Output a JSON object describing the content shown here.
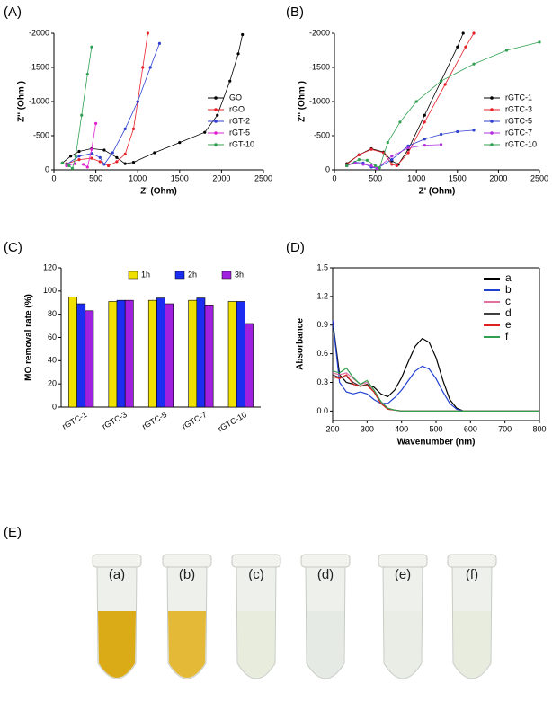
{
  "chart_data": [
    {
      "type": "line",
      "label": "(A)",
      "markers": true,
      "legend": "lower right",
      "x_label": "Z' (Ohm)",
      "y_label": "Z'' (Ohm )",
      "xlim": [
        0,
        2500
      ],
      "xticks": [
        0,
        500,
        1000,
        1500,
        2000,
        2500
      ],
      "ylim": [
        0,
        -2000
      ],
      "yticks": [
        -2000,
        -1500,
        -1000,
        -500,
        0
      ],
      "series": [
        {
          "name": "GO",
          "color": "#000000",
          "x": [
            100,
            200,
            300,
            450,
            600,
            750,
            850,
            950,
            1200,
            1500,
            1800,
            1950,
            2100,
            2200,
            2250
          ],
          "values": [
            -100,
            -200,
            -270,
            -310,
            -290,
            -180,
            -90,
            -110,
            -250,
            -400,
            -550,
            -800,
            -1300,
            -1700,
            -1980
          ]
        },
        {
          "name": "rGO",
          "color": "#e8202a",
          "x": [
            150,
            300,
            450,
            550,
            650,
            750,
            850,
            950,
            1000,
            1060,
            1120
          ],
          "values": [
            -90,
            -150,
            -170,
            -120,
            -60,
            -120,
            -230,
            -600,
            -1000,
            -1500,
            -2000
          ]
        },
        {
          "name": "rGT-2",
          "color": "#3040d0",
          "x": [
            150,
            300,
            450,
            550,
            600,
            700,
            850,
            1000,
            1150,
            1260
          ],
          "values": [
            -80,
            -200,
            -240,
            -180,
            -80,
            -250,
            -600,
            -1000,
            -1500,
            -1850
          ]
        },
        {
          "name": "rGT-5",
          "color": "#e020d0",
          "x": [
            150,
            250,
            350,
            400,
            450,
            500
          ],
          "values": [
            -60,
            -90,
            -80,
            -40,
            -300,
            -680
          ]
        },
        {
          "name": "rGT-10",
          "color": "#30a050",
          "x": [
            100,
            180,
            220,
            260,
            330,
            400,
            450
          ],
          "values": [
            -100,
            -60,
            -20,
            -200,
            -800,
            -1400,
            -1800
          ]
        }
      ]
    },
    {
      "type": "line",
      "label": "(B)",
      "markers": true,
      "legend": "lower right",
      "x_label": "Z' (Ohm)",
      "y_label": "Z'' (Ohm )",
      "xlim": [
        0,
        2500
      ],
      "xticks": [
        0,
        500,
        1000,
        1500,
        2000,
        2500
      ],
      "ylim": [
        0,
        -2000
      ],
      "yticks": [
        -2000,
        -1500,
        -1000,
        -500,
        0
      ],
      "series": [
        {
          "name": "rGTC-1",
          "color": "#000000",
          "x": [
            150,
            300,
            450,
            600,
            700,
            780,
            900,
            1100,
            1300,
            1500,
            1570
          ],
          "values": [
            -90,
            -220,
            -310,
            -260,
            -130,
            -80,
            -300,
            -800,
            -1300,
            -1800,
            -2000
          ]
        },
        {
          "name": "rGTC-3",
          "color": "#e8202a",
          "x": [
            150,
            300,
            450,
            600,
            700,
            760,
            900,
            1100,
            1350,
            1600,
            1700
          ],
          "values": [
            -80,
            -220,
            -300,
            -250,
            -80,
            -60,
            -250,
            -700,
            -1250,
            -1800,
            -2000
          ]
        },
        {
          "name": "rGTC-5",
          "color": "#3040d0",
          "x": [
            150,
            250,
            350,
            450,
            520,
            700,
            900,
            1100,
            1300,
            1500,
            1700
          ],
          "values": [
            -60,
            -110,
            -100,
            -40,
            -20,
            -150,
            -350,
            -450,
            -520,
            -560,
            -580
          ]
        },
        {
          "name": "rGTC-7",
          "color": "#b030e0",
          "x": [
            150,
            250,
            350,
            450,
            520,
            700,
            900,
            1100,
            1300
          ],
          "values": [
            -60,
            -100,
            -80,
            -60,
            -20,
            -200,
            -320,
            -360,
            -370
          ]
        },
        {
          "name": "rGTC-10",
          "color": "#30a050",
          "x": [
            150,
            300,
            400,
            500,
            550,
            650,
            800,
            1000,
            1300,
            1700,
            2100,
            2500
          ],
          "values": [
            -60,
            -150,
            -140,
            -60,
            -30,
            -400,
            -700,
            -1000,
            -1300,
            -1550,
            -1750,
            -1870
          ]
        }
      ]
    },
    {
      "type": "bar",
      "label": "(C)",
      "legend": "upper center",
      "y_label": "MO removal rate (%)",
      "categories": [
        "rGTC-1",
        "rGTC-3",
        "rGTC-5",
        "rGTC-7",
        "rGTC-10"
      ],
      "ylim": [
        0,
        120
      ],
      "yticks": [
        0,
        20,
        40,
        60,
        80,
        100,
        120
      ],
      "series": [
        {
          "name": "1h",
          "color": "#f0e000",
          "values": [
            95,
            91,
            92,
            92,
            91
          ]
        },
        {
          "name": "2h",
          "color": "#1c2cf0",
          "values": [
            89,
            92,
            94,
            94,
            91
          ]
        },
        {
          "name": "3h",
          "color": "#a020e0",
          "values": [
            83,
            92,
            89,
            88,
            72
          ]
        }
      ]
    },
    {
      "type": "line",
      "label": "(D)",
      "markers": false,
      "legend": "upper right",
      "x_label": "Wavenumber (nm)",
      "y_label": "Absorbance",
      "xlim": [
        200,
        800
      ],
      "xticks": [
        200,
        300,
        400,
        500,
        600,
        700,
        800
      ],
      "ylim": [
        -0.1,
        1.5
      ],
      "yticks": [
        {
          "value": 0,
          "label": "0.0"
        },
        0.3,
        0.6,
        0.9,
        1.2,
        1.5
      ],
      "x": [
        200,
        220,
        240,
        260,
        280,
        300,
        320,
        340,
        360,
        380,
        400,
        420,
        440,
        460,
        480,
        500,
        520,
        540,
        560,
        580,
        600,
        700,
        800
      ],
      "series": [
        {
          "name": "a",
          "color": "#000000",
          "values": [
            0.95,
            0.38,
            0.3,
            0.28,
            0.26,
            0.28,
            0.25,
            0.18,
            0.15,
            0.22,
            0.35,
            0.52,
            0.68,
            0.76,
            0.72,
            0.56,
            0.32,
            0.12,
            0.03,
            0,
            0,
            0,
            0
          ]
        },
        {
          "name": "b",
          "color": "#2040d0",
          "values": [
            0.95,
            0.3,
            0.2,
            0.18,
            0.2,
            0.18,
            0.12,
            0.08,
            0.08,
            0.14,
            0.22,
            0.32,
            0.42,
            0.47,
            0.44,
            0.34,
            0.2,
            0.08,
            0.02,
            0,
            0,
            0,
            0
          ]
        },
        {
          "name": "c",
          "color": "#e070a0",
          "values": [
            0.4,
            0.38,
            0.4,
            0.34,
            0.28,
            0.3,
            0.22,
            0.1,
            0.03,
            0.01,
            0,
            0,
            0,
            0,
            0,
            0,
            0,
            0,
            0,
            0,
            0,
            0,
            0
          ]
        },
        {
          "name": "d",
          "color": "#404040",
          "values": [
            0.38,
            0.35,
            0.36,
            0.3,
            0.26,
            0.28,
            0.2,
            0.08,
            0.02,
            0.01,
            0,
            0,
            0,
            0,
            0,
            0,
            0,
            0,
            0,
            0,
            0,
            0,
            0
          ]
        },
        {
          "name": "e",
          "color": "#e02020",
          "values": [
            0.36,
            0.34,
            0.38,
            0.28,
            0.26,
            0.27,
            0.2,
            0.08,
            0.02,
            0.01,
            0,
            0,
            0,
            0,
            0,
            0,
            0,
            0,
            0,
            0,
            0,
            0,
            0
          ]
        },
        {
          "name": "f",
          "color": "#30a050",
          "values": [
            0.42,
            0.4,
            0.45,
            0.35,
            0.28,
            0.32,
            0.22,
            0.1,
            0.03,
            0.01,
            0,
            0,
            0,
            0,
            0,
            0,
            0,
            0,
            0,
            0,
            0,
            0,
            0
          ]
        }
      ]
    }
  ],
  "photo": {
    "label": "(E)",
    "tubes": [
      "(a)",
      "(b)",
      "(c)",
      "(d)",
      "(e)",
      "(f)"
    ]
  }
}
